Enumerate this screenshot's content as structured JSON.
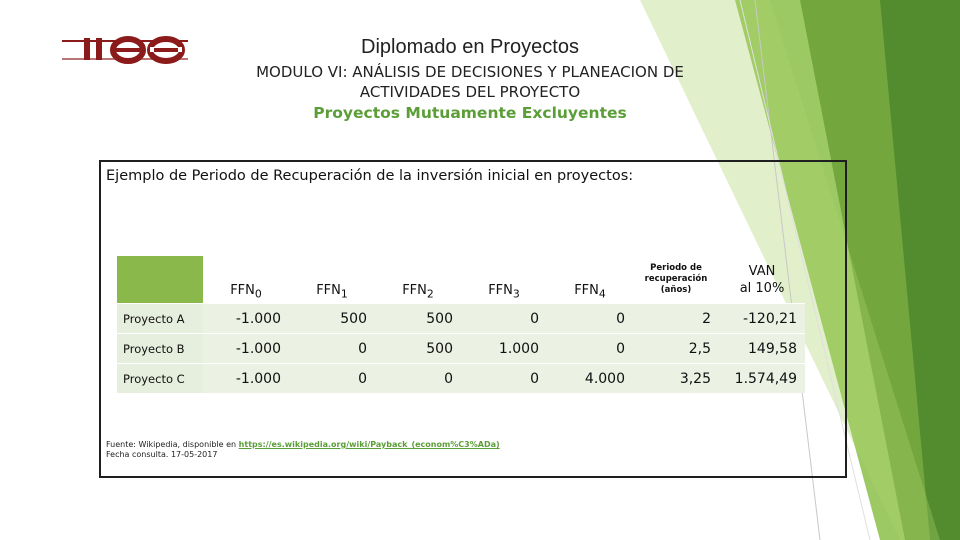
{
  "header": {
    "title": "Diplomado en Proyectos",
    "subtitle_line1": "MODULO VI: ANÁLISIS DE DECISIONES Y PLANEACION DE",
    "subtitle_line2": "ACTIVIDADES DEL PROYECTO",
    "topic": "Proyectos Mutuamente Excluyentes"
  },
  "logo": {
    "text": "ies",
    "color": "#8b1a1a"
  },
  "content": {
    "heading": "Ejemplo de Periodo de Recuperación de la inversión inicial en proyectos:",
    "table": {
      "columns": [
        {
          "base": "FFN",
          "sub": "0"
        },
        {
          "base": "FFN",
          "sub": "1"
        },
        {
          "base": "FFN",
          "sub": "2"
        },
        {
          "base": "FFN",
          "sub": "3"
        },
        {
          "base": "FFN",
          "sub": "4"
        },
        {
          "line1": "Periodo de",
          "line2": "recuperación",
          "line3": "(años)"
        },
        {
          "line1": "VAN",
          "line2": "al 10%"
        }
      ],
      "rows": [
        {
          "label": "Proyecto A",
          "values": [
            "-1.000",
            "500",
            "500",
            "0",
            "0",
            "2",
            "-120,21"
          ]
        },
        {
          "label": "Proyecto B",
          "values": [
            "-1.000",
            "0",
            "500",
            "1.000",
            "0",
            "2,5",
            "149,58"
          ]
        },
        {
          "label": "Proyecto C",
          "values": [
            "-1.000",
            "0",
            "0",
            "0",
            "4.000",
            "3,25",
            "1.574,49"
          ]
        }
      ]
    },
    "source": {
      "prefix": "Fuente: Wikipedia, disponible en",
      "link": "https://es.wikipedia.org/wiki/Payback_(econom%C3%ADa)",
      "date": "Fecha consulta. 17-05-2017"
    }
  },
  "colors": {
    "accent_green": "#5b9e38",
    "header_green": "#8bb84a",
    "cell_bg": "#ebf1e3"
  }
}
